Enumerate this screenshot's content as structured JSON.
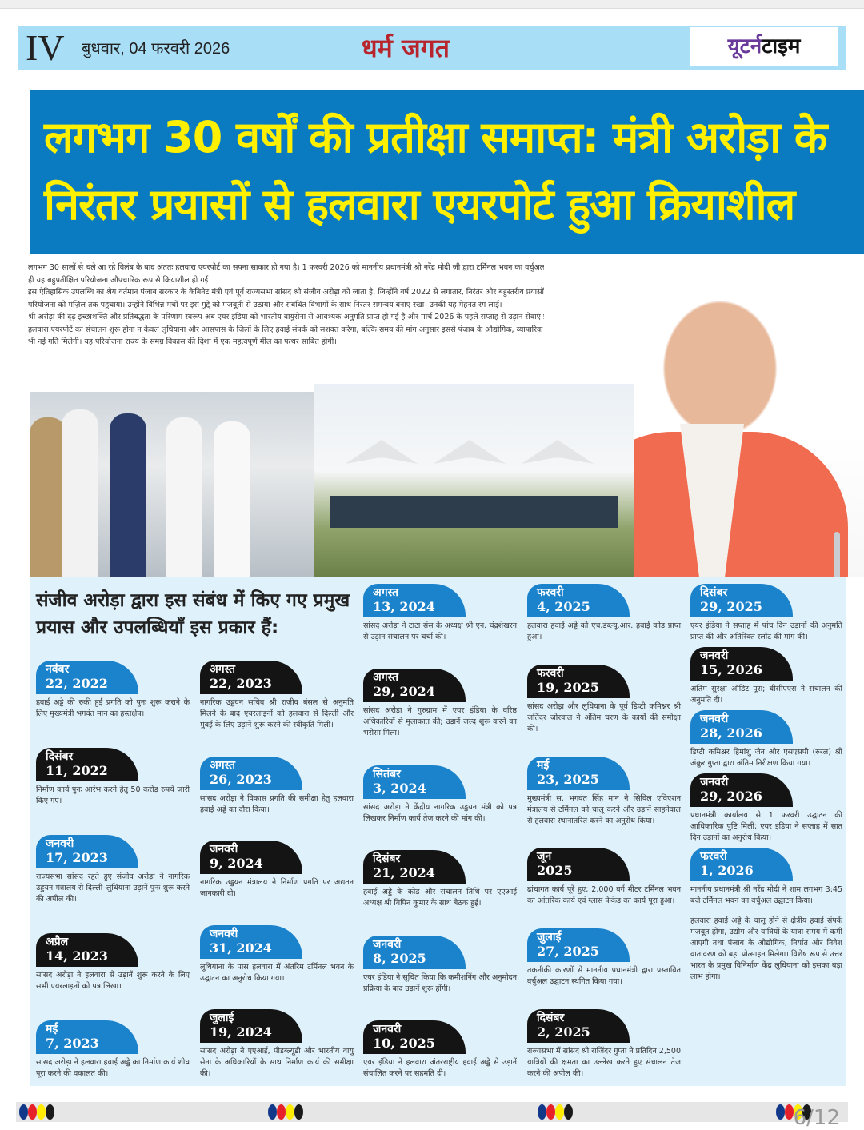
{
  "masthead": {
    "page_number": "IV",
    "date": "बुधवार, 04 फरवरी 2026",
    "section": "धर्म जगत",
    "logo_part1": "यूटर्न",
    "logo_part2": "टाइम"
  },
  "headline": {
    "line1": "लगभग 30 वर्षों की प्रतीक्षा समाप्त: मंत्री अरोड़ा के",
    "line2": "निरंतर प्रयासों से हलवारा एयरपोर्ट हुआ क्रियाशील"
  },
  "intro": [
    "लगभग 30 सालों से चले आ रहे विलंब के बाद अंततः हलवारा एयरपोर्ट का सपना साकार हो गया है। 1 फरवरी 2026 को माननीय प्रधानमंत्री श्री नरेंद्र मोदी जी द्वारा टर्मिनल भवन का वर्चुअल उद्घाटन किए जाने के साथ ही यह बहुप्रतीक्षित परियोजना औपचारिक रूप से क्रियाशील हो गई।",
    "इस ऐतिहासिक उपलब्धि का श्रेय वर्तमान पंजाब सरकार के कैबिनेट मंत्री एवं पूर्व राज्यसभा सांसद श्री संजीव अरोड़ा को जाता है, जिन्होंने वर्ष 2022 से लगातार, निरंतर और बहुस्तरीय प्रयासों के माध्यम से इस परियोजना को मंज़िल तक पहुंचाया। उन्होंने विभिन्न मंचों पर इस मुद्दे को मजबूती से उठाया और संबंधित विभागों के साथ निरंतर समन्वय बनाए रखा। उनकी यह मेहनत रंग लाई।",
    "श्री अरोड़ा की दृढ़ इच्छाशक्ति और प्रतिबद्धता के परिणाम स्वरूप अब एयर इंडिया को भारतीय वायुसेना से आवश्यक अनुमति प्राप्त हो गई है और मार्च 2026 के पहले सप्ताह से उड़ान सेवाएं प्रारंभ होने जा रही हैं।",
    "हलवारा एयरपोर्ट का संचालन शुरू होना न केवल लुधियाना और आसपास के जिलों के लिए हवाई संपर्क को सशक्त करेगा, बल्कि समय की मांग अनुसार इससे पंजाब के औद्योगिक, व्यापारिक और आर्थिक विकास को भी नई गति मिलेगी। यह परियोजना राज्य के समग्र विकास की दिशा में एक महत्वपूर्ण मील का पत्थर साबित होगी।"
  ],
  "timeline": {
    "heading": "संजीव अरोड़ा द्वारा इस संबंध में किए गए प्रमुख प्रयास और उपलब्धियाँ इस प्रकार हैं:",
    "columns": [
      [
        {
          "month": "नवंबर",
          "date": "22, 2022",
          "style": "blue",
          "text": "हवाई अड्डे की रुकी हुई प्रगति को पुनः शुरू कराने के लिए मुख्यमंत्री भगवंत मान का हस्तक्षेप।"
        },
        {
          "month": "दिसंबर",
          "date": "11, 2022",
          "style": "black",
          "text": "निर्माण कार्य पुनः आरंभ करने हेतु 50 करोड़ रुपये जारी किए गए।"
        },
        {
          "month": "जनवरी",
          "date": "17, 2023",
          "style": "blue",
          "text": "राज्यसभा सांसद रहते हुए संजीव अरोड़ा ने नागरिक उड्डयन मंत्रालय से दिल्ली–लुधियाना उड़ानें पुनः शुरू करने की अपील की।"
        },
        {
          "month": "अप्रैल",
          "date": "14, 2023",
          "style": "black",
          "text": "सांसद अरोड़ा ने हलवारा से उड़ानें शुरू करने के लिए सभी एयरलाइनों को पत्र लिखा।"
        },
        {
          "month": "मई",
          "date": "7, 2023",
          "style": "blue",
          "text": "सांसद अरोड़ा ने हलवारा हवाई अड्डे का निर्माण कार्य शीघ्र पूरा करने की वकालत की।"
        }
      ],
      [
        {
          "month": "अगस्त",
          "date": "22, 2023",
          "style": "black",
          "text": "नागरिक उड्डयन सचिव श्री राजीव बंसल से अनुमति मिलने के बाद एयरलाइनों को हलवारा से दिल्ली और मुंबई के लिए उड़ानें शुरू करने की स्वीकृति मिली।"
        },
        {
          "month": "अगस्त",
          "date": "26, 2023",
          "style": "blue",
          "text": "सांसद अरोड़ा ने विकास प्रगति की समीक्षा हेतु हलवारा हवाई अड्डे का दौरा किया।"
        },
        {
          "month": "जनवरी",
          "date": "9, 2024",
          "style": "black",
          "text": "नागरिक उड्डयन मंत्रालय ने निर्माण प्रगति पर अद्यतन जानकारी दी।"
        },
        {
          "month": "जनवरी",
          "date": "31, 2024",
          "style": "blue",
          "text": "लुधियाना के पास हलवारा में अंतरिम टर्मिनल भवन के उद्घाटन का अनुरोध किया गया।"
        },
        {
          "month": "जुलाई",
          "date": "19, 2024",
          "style": "black",
          "text": "सांसद अरोड़ा ने एएआई, पीडब्ल्यूडी और भारतीय वायु सेना के अधिकारियों के साथ निर्माण कार्य की समीक्षा की।"
        }
      ],
      [
        {
          "month": "अगस्त",
          "date": "13, 2024",
          "style": "blue",
          "text": "सांसद अरोड़ा ने टाटा संस के अध्यक्ष श्री एन. चंद्रशेखरन से उड़ान संचालन पर चर्चा की।"
        },
        {
          "month": "अगस्त",
          "date": "29, 2024",
          "style": "black",
          "text": "सांसद अरोड़ा ने गुरुग्राम में एयर इंडिया के वरिष्ठ अधिकारियों से मुलाकात की; उड़ानें जल्द शुरू करने का भरोसा मिला।"
        },
        {
          "month": "सितंबर",
          "date": "3, 2024",
          "style": "blue",
          "text": "सांसद अरोड़ा ने केंद्रीय नागरिक उड्डयन मंत्री को पत्र लिखकर निर्माण कार्य तेज करने की मांग की।"
        },
        {
          "month": "दिसंबर",
          "date": "21, 2024",
          "style": "black",
          "text": "हवाई अड्डे के कोड और संचालन तिथि पर एएआई अध्यक्ष श्री विपिन कुमार के साथ बैठक हुई।"
        },
        {
          "month": "जनवरी",
          "date": "8, 2025",
          "style": "blue",
          "text": "एयर इंडिया ने सूचित किया कि कमीशनिंग और अनुमोदन प्रक्रिया के बाद उड़ानें शुरू होंगी।"
        },
        {
          "month": "जनवरी",
          "date": "10, 2025",
          "style": "black",
          "text": "एयर इंडिया ने हलवारा अंतरराष्ट्रीय हवाई अड्डे से उड़ानें संचालित करने पर सहमति दी।"
        }
      ],
      [
        {
          "month": "फरवरी",
          "date": "4, 2025",
          "style": "blue",
          "text": "हलवारा हवाई अड्डे को एच.डब्ल्यू.आर. हवाई कोड प्राप्त हुआ।"
        },
        {
          "month": "फरवरी",
          "date": "19, 2025",
          "style": "black",
          "text": "सांसद अरोड़ा और लुधियाना के पूर्व डिप्टी कमिश्नर श्री जतिंदर जोरवाल ने अंतिम चरण के कार्यों की समीक्षा की।"
        },
        {
          "month": "मई",
          "date": "23, 2025",
          "style": "blue",
          "text": "मुख्यमंत्री स. भगवंत सिंह मान ने सिविल एविएशन मंत्रालय से टर्मिनल को चालू करने और उड़ानें साहनेवाल से हलवारा स्थानांतरित करने का अनुरोध किया।"
        },
        {
          "month": "जून",
          "date": "2025",
          "style": "black",
          "text": "ढांचागत कार्य पूरे हुए; 2,000 वर्ग मीटर टर्मिनल भवन का आंतरिक कार्य एवं ग्लास फेकेड का कार्य पूरा हुआ।"
        },
        {
          "month": "जुलाई",
          "date": "27, 2025",
          "style": "blue",
          "text": "तकनीकी कारणों से माननीय प्रधानमंत्री द्वारा प्रस्तावित वर्चुअल उद्घाटन स्थगित किया गया।"
        },
        {
          "month": "दिसंबर",
          "date": "2, 2025",
          "style": "black",
          "text": "राज्यसभा में सांसद श्री राजिंदर गुप्ता ने प्रतिदिन 2,500 यात्रियों की क्षमता का उल्लेख करते हुए संचालन तेज करने की अपील की।"
        }
      ],
      [
        {
          "month": "दिसंबर",
          "date": "29, 2025",
          "style": "blue",
          "text": "एयर इंडिया ने सप्ताह में पांच दिन उड़ानों की अनुमति प्राप्त की और अतिरिक्त स्लॉट की मांग की।"
        },
        {
          "month": "जनवरी",
          "date": "15, 2026",
          "style": "black",
          "text": "अंतिम सुरक्षा ऑडिट पूरा; बीसीएएस ने संचालन की अनुमति दी।"
        },
        {
          "month": "जनवरी",
          "date": "28, 2026",
          "style": "blue",
          "text": "डिप्टी कमिश्नर हिमांशु जैन और एसएसपी (रुरल) श्री अंकुर गुप्ता द्वारा अंतिम निरीक्षण किया गया।"
        },
        {
          "month": "जनवरी",
          "date": "29, 2026",
          "style": "black",
          "text": "प्रधानमंत्री कार्यालय से 1 फरवरी उद्घाटन की आधिकारिक पुष्टि मिली; एयर इंडिया ने सप्ताह में सात दिन उड़ानों का अनुरोध किया।"
        },
        {
          "month": "फरवरी",
          "date": "1, 2026",
          "style": "blue",
          "text": "माननीय प्रधानमंत्री श्री नरेंद्र मोदी ने शाम लगभग 3:45 बजे टर्मिनल भवन का वर्चुअल उद्घाटन किया।"
        }
      ]
    ],
    "closing": "हलवारा हवाई अड्डे के चालू होने से क्षेत्रीय हवाई संपर्क मजबूत होगा, उद्योग और यात्रियों के यात्रा समय में कमी आएगी तथा पंजाब के औद्योगिक, निर्यात और निवेश वातावरण को बड़ा प्रोत्साहन मिलेगा। विशेष रूप से उत्तर भारत के प्रमुख विनिर्माण केंद्र लुधियाना को इसका बड़ा लाभ होगा।"
  },
  "footer": {
    "page_indicator": "6/12",
    "registration_colors": [
      "#12388a",
      "#e62129",
      "#ffec00",
      "#1a1a1a"
    ]
  },
  "colors": {
    "masthead_bg": "#a9def7",
    "headline_bg": "#0b7bc1",
    "headline_text": "#ffef00",
    "badge_blue": "#1b82cc",
    "badge_black": "#141414",
    "section_title": "#b8242c",
    "timeline_bg": "#dff1fb"
  }
}
